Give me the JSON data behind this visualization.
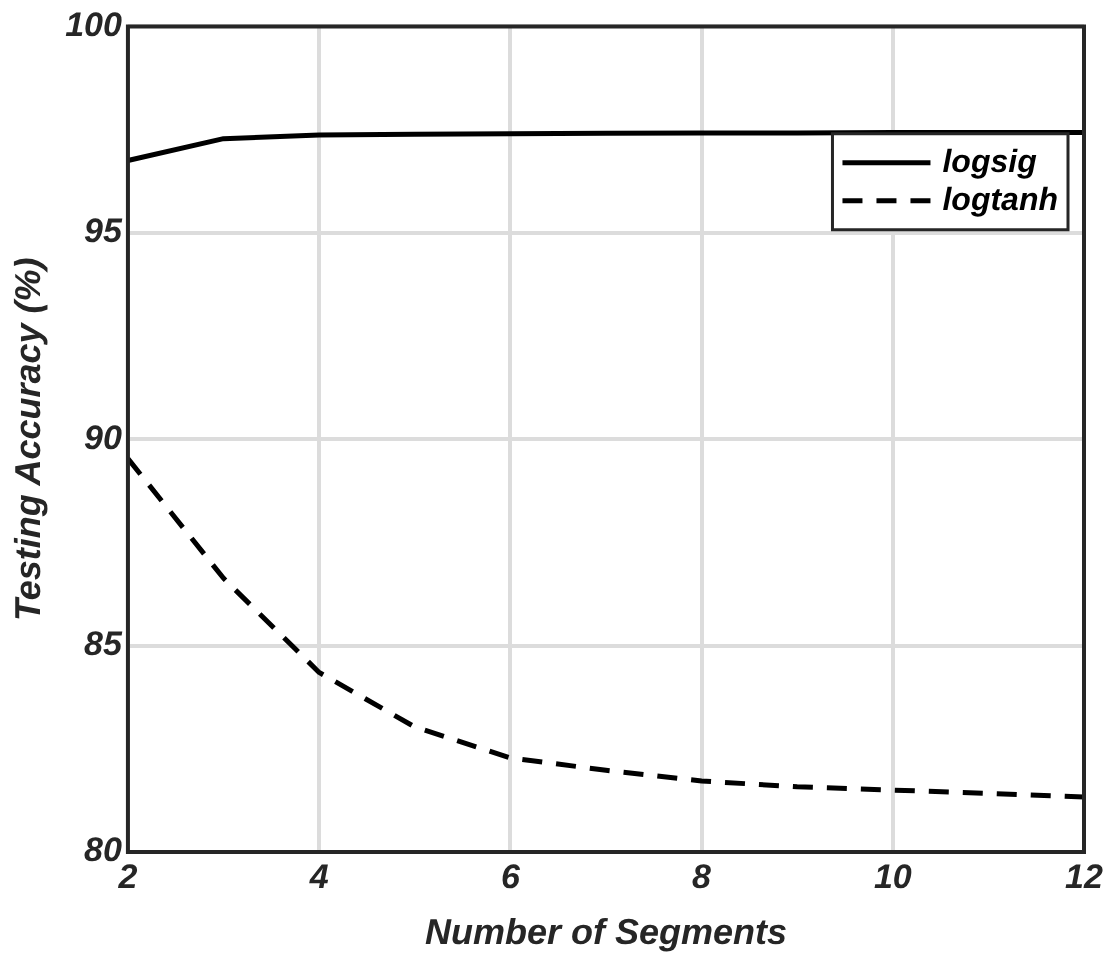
{
  "chart_data": {
    "type": "line",
    "xlabel": "Number of Segments",
    "ylabel": "Testing Accuracy (%)",
    "x": [
      2,
      3,
      4,
      5,
      6,
      7,
      8,
      9,
      10,
      11,
      12
    ],
    "series": [
      {
        "name": "logsig",
        "color": "#000000",
        "line_style": "solid",
        "values": [
          96.75,
          97.28,
          97.37,
          97.39,
          97.4,
          97.41,
          97.42,
          97.42,
          97.43,
          97.43,
          97.43
        ]
      },
      {
        "name": "logtanh",
        "color": "#000000",
        "line_style": "dashed",
        "values": [
          89.53,
          86.63,
          84.35,
          83.03,
          82.28,
          81.98,
          81.72,
          81.58,
          81.5,
          81.42,
          81.33
        ]
      }
    ],
    "xlim": [
      2,
      12
    ],
    "xticks": [
      2,
      4,
      6,
      8,
      10,
      12
    ],
    "ylim": [
      80,
      100
    ],
    "yticks": [
      80,
      85,
      90,
      95,
      100
    ],
    "grid": true,
    "legend": "top right",
    "marker": "none"
  }
}
